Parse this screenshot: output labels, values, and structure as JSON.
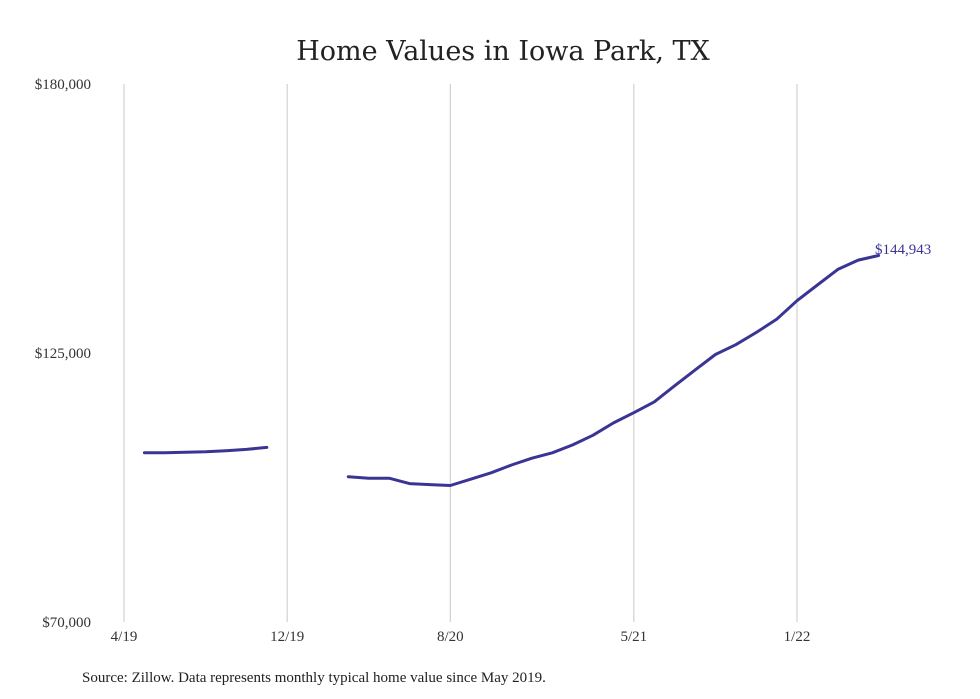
{
  "chart_data": {
    "type": "line",
    "title": "Home Values in Iowa Park, TX",
    "xlabel": "",
    "ylabel": "",
    "ylim": [
      70000,
      180000
    ],
    "y_ticks": [
      "$70,000",
      "$125,000",
      "$180,000"
    ],
    "y_tick_values": [
      70000,
      125000,
      180000
    ],
    "x_ticks": [
      "4/19",
      "12/19",
      "8/20",
      "5/21",
      "1/22"
    ],
    "x_tick_dates": [
      "2019-04",
      "2019-12",
      "2020-08",
      "2021-05",
      "2022-01"
    ],
    "grid": {
      "vertical": true,
      "horizontal": false
    },
    "series": [
      {
        "color": "#3a3594",
        "points": [
          [
            "2019-05",
            104600
          ],
          [
            "2019-06",
            104600
          ],
          [
            "2019-07",
            104700
          ],
          [
            "2019-08",
            104800
          ],
          [
            "2019-09",
            105000
          ],
          [
            "2019-10",
            105300
          ],
          [
            "2019-11",
            105700
          ],
          [
            "2019-12",
            null
          ],
          [
            "2020-01",
            null
          ],
          [
            "2020-02",
            null
          ],
          [
            "2020-03",
            null
          ],
          [
            "2020-04",
            null
          ],
          [
            "2020-03",
            null
          ],
          [
            "2020-03",
            99700
          ],
          [
            "2020-04",
            99400
          ],
          [
            "2020-05",
            99400
          ],
          [
            "2020-06",
            98300
          ],
          [
            "2020-07",
            98100
          ],
          [
            "2020-08",
            97900
          ],
          [
            "2020-08",
            97900
          ],
          [
            "2020-09",
            99200
          ],
          [
            "2020-10",
            100500
          ],
          [
            "2020-11",
            102100
          ],
          [
            "2020-12",
            103500
          ],
          [
            "2021-01",
            104600
          ],
          [
            "2021-02",
            106200
          ],
          [
            "2021-03",
            108200
          ],
          [
            "2021-04",
            110700
          ],
          [
            "2021-05",
            112800
          ],
          [
            "2021-06",
            115000
          ],
          [
            "2021-07",
            118300
          ],
          [
            "2021-08",
            121500
          ],
          [
            "2021-09",
            124700
          ],
          [
            "2021-10",
            126700
          ],
          [
            "2021-11",
            129200
          ],
          [
            "2021-12",
            131900
          ],
          [
            "2022-01",
            135700
          ],
          [
            "2022-02",
            138900
          ],
          [
            "2022-03",
            142100
          ],
          [
            "2022-04",
            144000
          ],
          [
            "2022-05",
            144943
          ]
        ]
      }
    ],
    "end_label": "$144,943",
    "note": "Source: Zillow. Data represents monthly typical home value since May 2019."
  }
}
